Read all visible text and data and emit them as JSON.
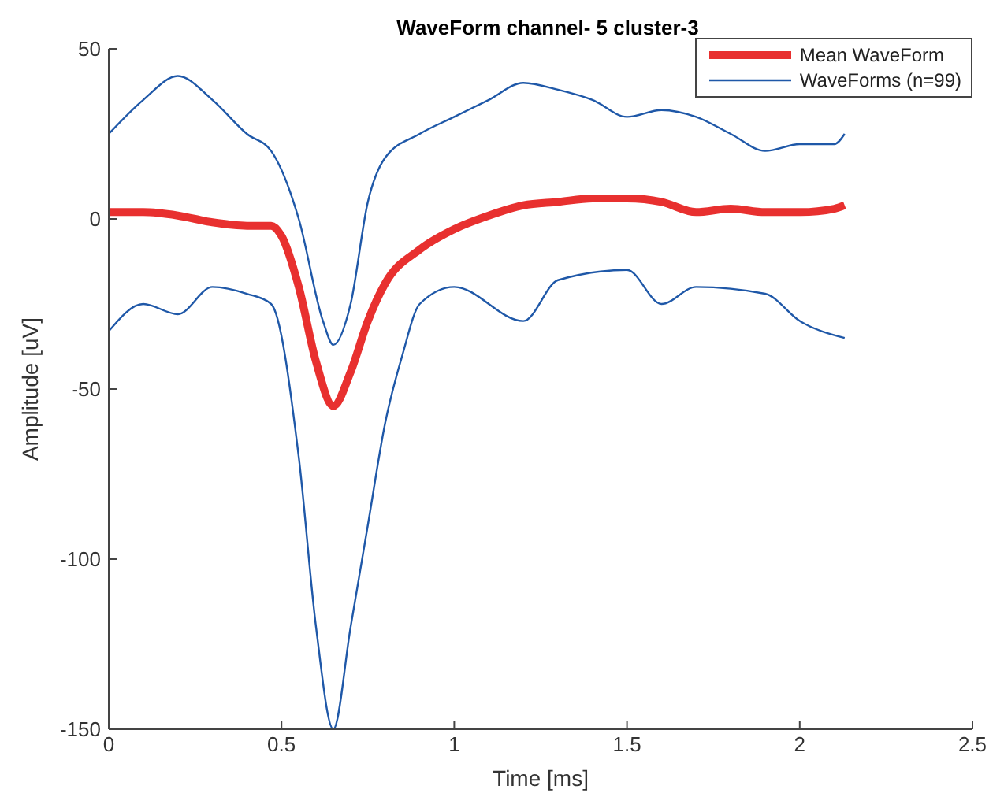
{
  "chart_data": {
    "type": "line",
    "title": "WaveForm channel- 5 cluster-3",
    "xlabel": "Time [ms]",
    "ylabel": "Amplitude [uV]",
    "xlim": [
      0,
      2.5
    ],
    "xticks": [
      0,
      0.5,
      1,
      1.5,
      2,
      2.5
    ],
    "ylim": [
      -150,
      50
    ],
    "yticks": [
      -150,
      -100,
      -50,
      0,
      50
    ],
    "grid": false,
    "legend": "top right",
    "series": [
      {
        "name": "WaveForms (n=99)",
        "color": "#1f58a8",
        "x": [
          0,
          0.1,
          0.2,
          0.3,
          0.4,
          0.47,
          0.55,
          0.62,
          0.65,
          0.7,
          0.75,
          0.8,
          0.9,
          1.0,
          1.1,
          1.2,
          1.3,
          1.4,
          1.5,
          1.6,
          1.7,
          1.8,
          1.9,
          2.0,
          2.1,
          2.13
        ],
        "values": [
          25,
          35,
          42,
          35,
          25,
          20,
          0,
          -30,
          -37,
          -25,
          5,
          18,
          25,
          30,
          35,
          40,
          38,
          35,
          30,
          32,
          30,
          25,
          20,
          22,
          22,
          25
        ]
      },
      {
        "color": "#1f58a8",
        "x": [
          0,
          0.1,
          0.2,
          0.3,
          0.4,
          0.47,
          0.55,
          0.6,
          0.65,
          0.7,
          0.75,
          0.8,
          0.85,
          0.9,
          1.0,
          1.2,
          1.3,
          1.5,
          1.6,
          1.7,
          1.9,
          2.0,
          2.13
        ],
        "values": [
          -33,
          -25,
          -28,
          -20,
          -22,
          -25,
          -70,
          -120,
          -150,
          -120,
          -90,
          -60,
          -40,
          -25,
          -20,
          -30,
          -18,
          -15,
          -25,
          -20,
          -22,
          -30,
          -35
        ]
      },
      {
        "name": "Mean WaveForm",
        "color": "#e8302f",
        "x": [
          0,
          0.1,
          0.2,
          0.3,
          0.4,
          0.47,
          0.5,
          0.55,
          0.6,
          0.65,
          0.7,
          0.75,
          0.8,
          0.9,
          1.0,
          1.1,
          1.2,
          1.3,
          1.4,
          1.5,
          1.6,
          1.7,
          1.8,
          1.9,
          2.0,
          2.1,
          2.13
        ],
        "values": [
          2,
          2,
          1,
          -1,
          -2,
          -2,
          -5,
          -20,
          -42,
          -55,
          -45,
          -30,
          -19,
          -9,
          -3,
          1,
          4,
          5,
          6,
          6,
          5,
          2,
          3,
          2,
          2,
          3,
          4
        ]
      }
    ]
  }
}
